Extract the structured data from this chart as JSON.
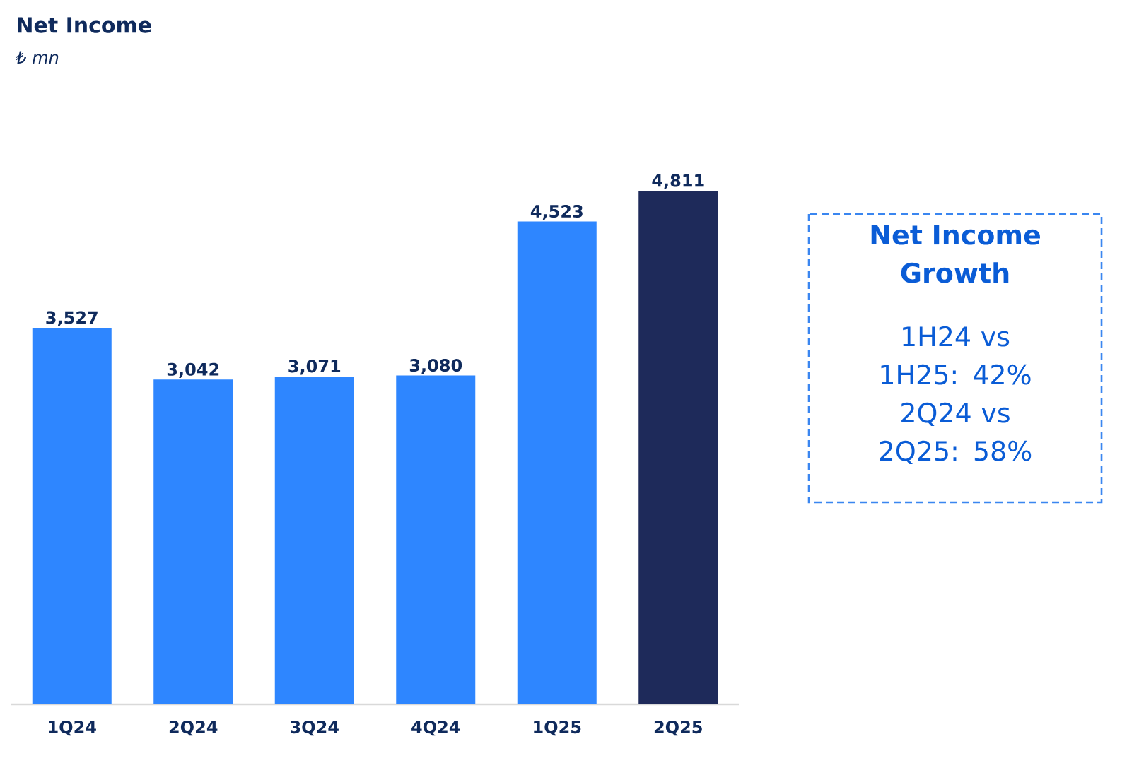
{
  "chart_data": {
    "type": "bar",
    "title": "Net Income",
    "subtitle": "*₺ mn*",
    "categories": [
      "1Q24",
      "2Q24",
      "3Q24",
      "4Q24",
      "1Q25",
      "2Q25"
    ],
    "values": [
      3527,
      3042,
      3071,
      3080,
      4523,
      4811
    ],
    "value_labels": [
      "3,527",
      "3,042",
      "3,071",
      "3,080",
      "4,523",
      "4,811"
    ],
    "colors": [
      "#2e86ff",
      "#2e86ff",
      "#2e86ff",
      "#2e86ff",
      "#2e86ff",
      "#1e2a5a"
    ],
    "annotations": [
      "Net Income Growth",
      "1H24 vs 1H25: 42%",
      "2Q24 vs 2Q25: 58%"
    ]
  }
}
